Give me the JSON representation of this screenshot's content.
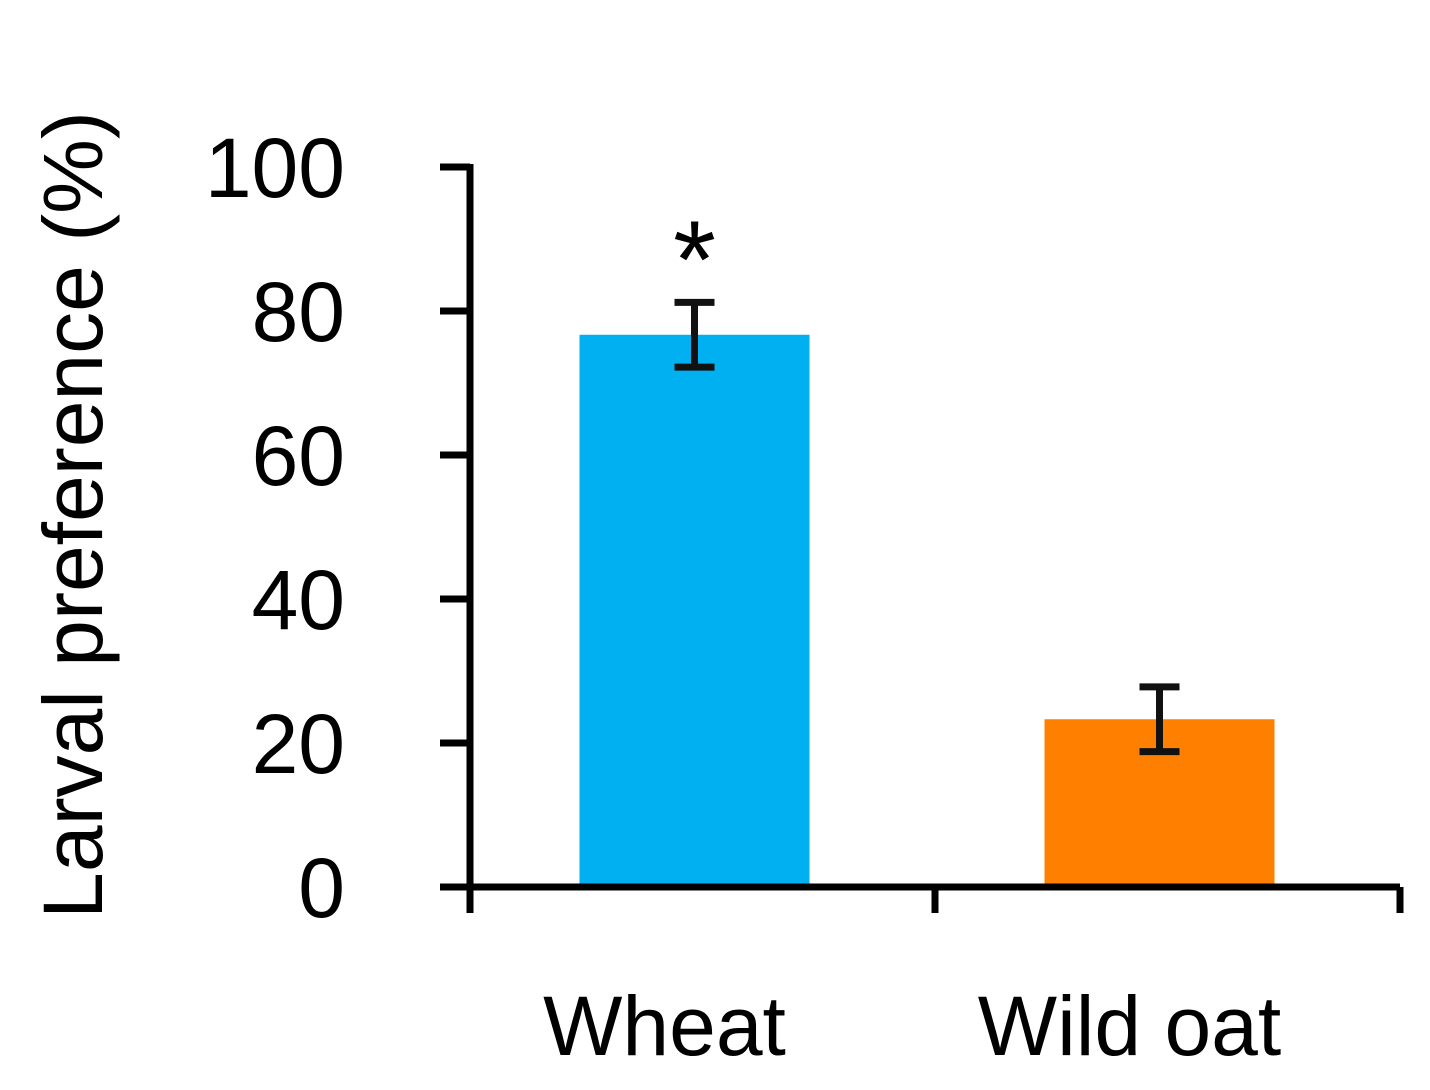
{
  "chart_data": {
    "type": "bar",
    "title": "",
    "xlabel": "",
    "ylabel": "Larval preference (%)",
    "ylim": [
      0,
      100
    ],
    "yticks": [
      "0",
      "20",
      "40",
      "60",
      "80",
      "100"
    ],
    "categories": [
      "Wheat",
      "Wild oat"
    ],
    "values": [
      76.7,
      23.3
    ],
    "error": [
      4.5,
      4.5
    ],
    "colors": [
      "#00b0f0",
      "#ff8000"
    ],
    "annotations": [
      "*",
      ""
    ],
    "grid": false,
    "legend": "none"
  }
}
